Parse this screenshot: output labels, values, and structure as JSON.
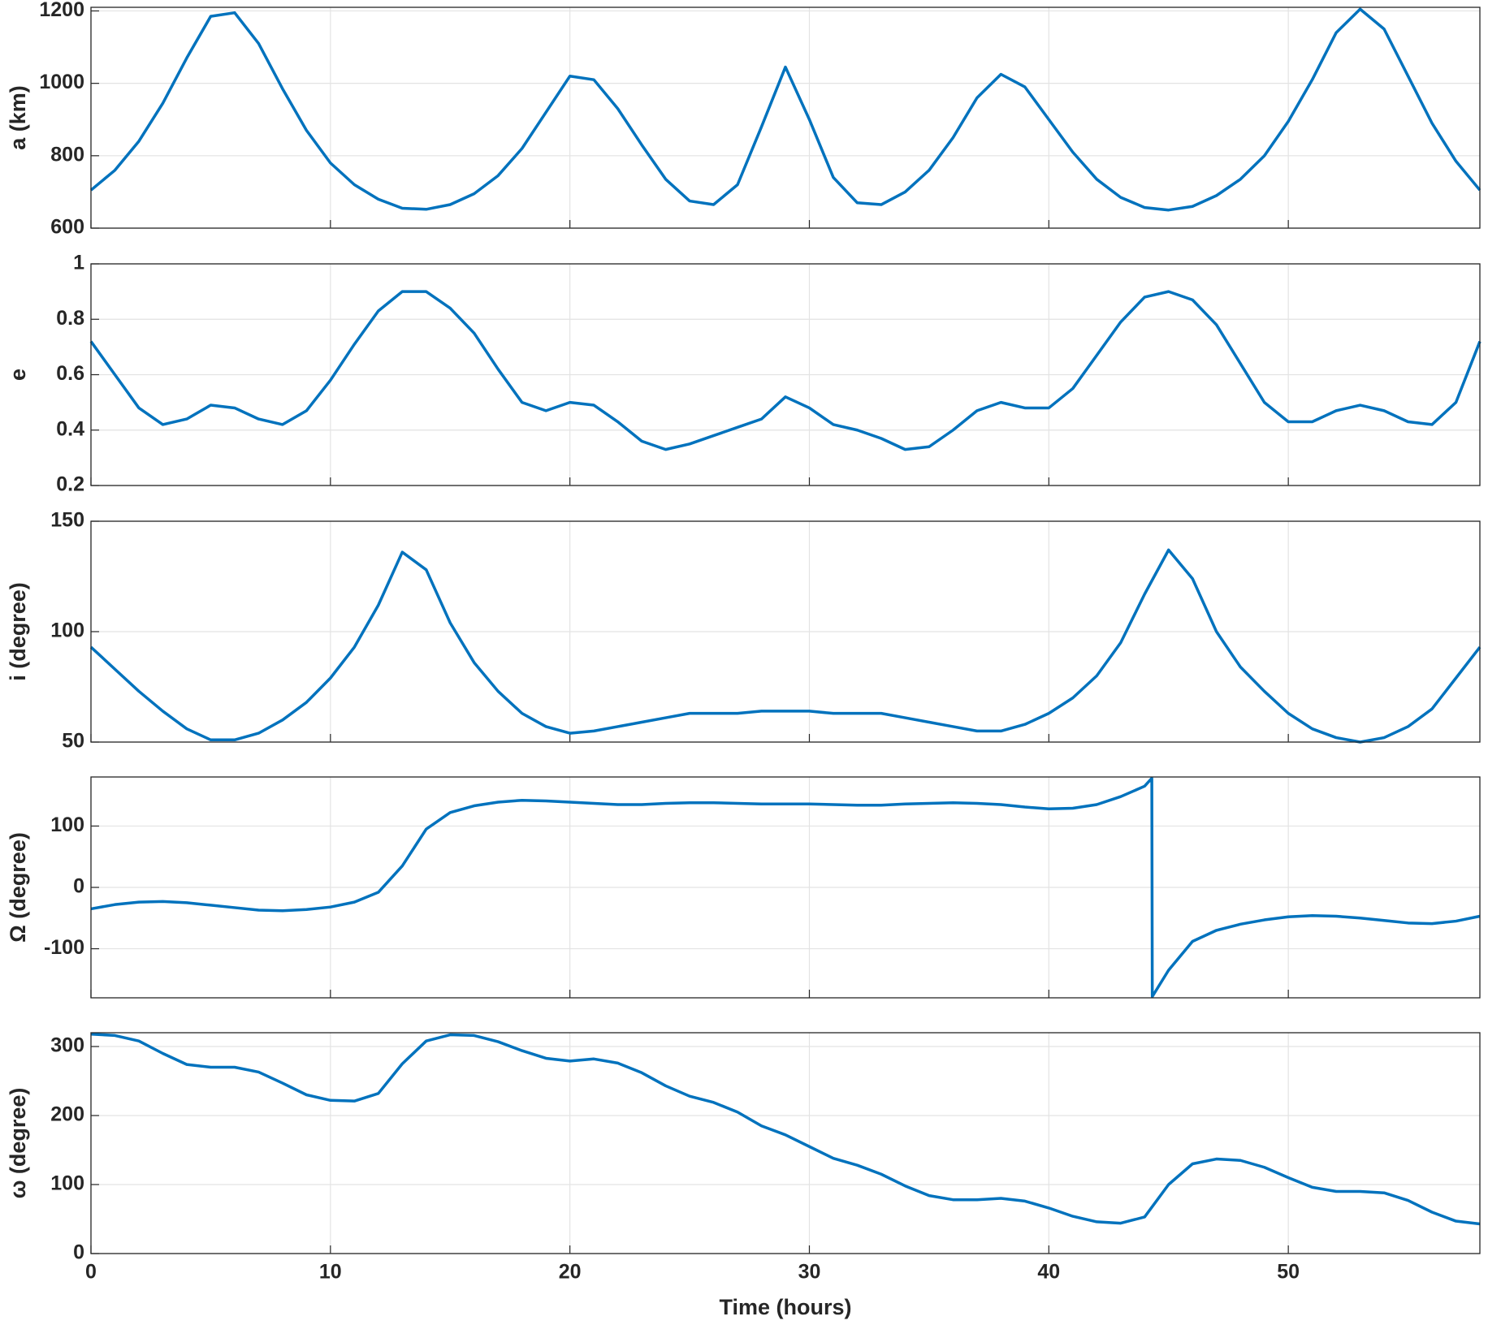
{
  "chart_data": [
    {
      "type": "line",
      "ylabel": "a (km)",
      "grid": true,
      "show_xticklabels": false,
      "x": [
        0,
        1,
        2,
        3,
        4,
        5,
        6,
        7,
        8,
        9,
        10,
        11,
        12,
        13,
        14,
        15,
        16,
        17,
        18,
        19,
        20,
        21,
        22,
        23,
        24,
        25,
        26,
        27,
        28,
        29,
        30,
        31,
        32,
        33,
        34,
        35,
        36,
        37,
        38,
        39,
        40,
        41,
        42,
        43,
        44,
        45,
        46,
        47,
        48,
        49,
        50,
        51,
        52,
        53,
        54,
        55,
        56,
        57,
        58
      ],
      "series": [
        {
          "color": "#0072BD",
          "values": [
            705,
            760,
            840,
            945,
            1070,
            1185,
            1195,
            1110,
            985,
            870,
            780,
            720,
            680,
            655,
            652,
            665,
            695,
            745,
            820,
            920,
            1020,
            1010,
            930,
            830,
            735,
            675,
            665,
            720,
            880,
            1045,
            900,
            740,
            670,
            665,
            700,
            760,
            850,
            960,
            1025,
            990,
            900,
            810,
            735,
            685,
            657,
            650,
            660,
            690,
            735,
            800,
            895,
            1010,
            1140,
            1205,
            1150,
            1020,
            890,
            785,
            705
          ]
        }
      ],
      "xlim": [
        0,
        58
      ],
      "xticks": [
        0,
        10,
        20,
        30,
        40,
        50
      ],
      "ylim": [
        600,
        1210
      ],
      "yticks": [
        600,
        800,
        1000,
        1200
      ]
    },
    {
      "type": "line",
      "ylabel": "e",
      "grid": true,
      "show_xticklabels": false,
      "x": [
        0,
        1,
        2,
        3,
        4,
        5,
        6,
        7,
        8,
        9,
        10,
        11,
        12,
        13,
        14,
        15,
        16,
        17,
        18,
        19,
        20,
        21,
        22,
        23,
        24,
        25,
        26,
        27,
        28,
        29,
        30,
        31,
        32,
        33,
        34,
        35,
        36,
        37,
        38,
        39,
        40,
        41,
        42,
        43,
        44,
        45,
        46,
        47,
        48,
        49,
        50,
        51,
        52,
        53,
        54,
        55,
        56,
        57,
        58
      ],
      "series": [
        {
          "color": "#0072BD",
          "values": [
            0.72,
            0.6,
            0.48,
            0.42,
            0.44,
            0.49,
            0.48,
            0.44,
            0.42,
            0.47,
            0.58,
            0.71,
            0.83,
            0.9,
            0.9,
            0.84,
            0.75,
            0.62,
            0.5,
            0.47,
            0.5,
            0.49,
            0.43,
            0.36,
            0.33,
            0.35,
            0.38,
            0.41,
            0.44,
            0.52,
            0.48,
            0.42,
            0.4,
            0.37,
            0.33,
            0.34,
            0.4,
            0.47,
            0.5,
            0.48,
            0.48,
            0.55,
            0.67,
            0.79,
            0.88,
            0.9,
            0.87,
            0.78,
            0.64,
            0.5,
            0.43,
            0.43,
            0.47,
            0.49,
            0.47,
            0.43,
            0.42,
            0.5,
            0.72
          ]
        }
      ],
      "xlim": [
        0,
        58
      ],
      "xticks": [
        0,
        10,
        20,
        30,
        40,
        50
      ],
      "ylim": [
        0.2,
        1
      ],
      "yticks": [
        0.2,
        0.4,
        0.6,
        0.8,
        1
      ]
    },
    {
      "type": "line",
      "ylabel": "i (degree)",
      "grid": true,
      "show_xticklabels": false,
      "x": [
        0,
        1,
        2,
        3,
        4,
        5,
        6,
        7,
        8,
        9,
        10,
        11,
        12,
        13,
        14,
        15,
        16,
        17,
        18,
        19,
        20,
        21,
        22,
        23,
        24,
        25,
        26,
        27,
        28,
        29,
        30,
        31,
        32,
        33,
        34,
        35,
        36,
        37,
        38,
        39,
        40,
        41,
        42,
        43,
        44,
        45,
        46,
        47,
        48,
        49,
        50,
        51,
        52,
        53,
        54,
        55,
        56,
        57,
        58
      ],
      "series": [
        {
          "color": "#0072BD",
          "values": [
            93,
            83,
            73,
            64,
            56,
            51,
            51,
            54,
            60,
            68,
            79,
            93,
            112,
            136,
            128,
            104,
            86,
            73,
            63,
            57,
            54,
            55,
            57,
            59,
            61,
            63,
            63,
            63,
            64,
            64,
            64,
            63,
            63,
            63,
            61,
            59,
            57,
            55,
            55,
            58,
            63,
            70,
            80,
            95,
            117,
            137,
            124,
            100,
            84,
            73,
            63,
            56,
            52,
            50,
            52,
            57,
            65,
            79,
            93
          ]
        }
      ],
      "xlim": [
        0,
        58
      ],
      "xticks": [
        0,
        10,
        20,
        30,
        40,
        50
      ],
      "ylim": [
        50,
        150
      ],
      "yticks": [
        50,
        100,
        150
      ]
    },
    {
      "type": "line",
      "ylabel": "Ω (degree)",
      "grid": true,
      "show_xticklabels": false,
      "x": [
        0,
        1,
        2,
        3,
        4,
        5,
        6,
        7,
        8,
        9,
        10,
        11,
        12,
        13,
        14,
        15,
        16,
        17,
        18,
        19,
        20,
        21,
        22,
        23,
        24,
        25,
        26,
        27,
        28,
        29,
        30,
        31,
        32,
        33,
        34,
        35,
        36,
        37,
        38,
        39,
        40,
        41,
        42,
        43,
        44,
        44.3,
        44.32,
        45,
        46,
        47,
        48,
        49,
        50,
        51,
        52,
        53,
        54,
        55,
        56,
        57,
        58
      ],
      "series": [
        {
          "color": "#0072BD",
          "values": [
            -35,
            -28,
            -24,
            -23,
            -25,
            -29,
            -33,
            -37,
            -38,
            -36,
            -32,
            -24,
            -8,
            35,
            95,
            122,
            133,
            139,
            142,
            141,
            139,
            137,
            135,
            135,
            137,
            138,
            138,
            137,
            136,
            136,
            136,
            135,
            134,
            134,
            136,
            137,
            138,
            137,
            135,
            131,
            128,
            129,
            135,
            148,
            165,
            178,
            -178,
            -135,
            -88,
            -70,
            -60,
            -53,
            -48,
            -46,
            -47,
            -50,
            -54,
            -58,
            -59,
            -55,
            -47
          ]
        }
      ],
      "xlim": [
        0,
        58
      ],
      "xticks": [
        0,
        10,
        20,
        30,
        40,
        50
      ],
      "ylim": [
        -180,
        180
      ],
      "yticks": [
        -100,
        0,
        100
      ]
    },
    {
      "type": "line",
      "ylabel": "ω (degree)",
      "xlabel": "Time (hours)",
      "grid": true,
      "show_xticklabels": true,
      "x": [
        0,
        1,
        2,
        3,
        4,
        5,
        6,
        7,
        8,
        9,
        10,
        11,
        12,
        13,
        14,
        15,
        16,
        17,
        18,
        19,
        20,
        21,
        22,
        23,
        24,
        25,
        26,
        27,
        28,
        29,
        30,
        31,
        32,
        33,
        34,
        35,
        36,
        37,
        38,
        39,
        40,
        41,
        42,
        43,
        44,
        45,
        46,
        47,
        48,
        49,
        50,
        51,
        52,
        53,
        54,
        55,
        56,
        57,
        58
      ],
      "series": [
        {
          "color": "#0072BD",
          "values": [
            318,
            316,
            308,
            290,
            274,
            270,
            270,
            263,
            247,
            230,
            222,
            221,
            232,
            275,
            308,
            317,
            316,
            307,
            294,
            283,
            279,
            282,
            276,
            262,
            243,
            228,
            219,
            205,
            185,
            172,
            155,
            138,
            128,
            115,
            98,
            84,
            78,
            78,
            80,
            76,
            66,
            54,
            46,
            44,
            53,
            100,
            130,
            137,
            135,
            125,
            110,
            96,
            90,
            90,
            88,
            77,
            60,
            47,
            43
          ]
        }
      ],
      "xlim": [
        0,
        58
      ],
      "xticks": [
        0,
        10,
        20,
        30,
        40,
        50
      ],
      "ylim": [
        0,
        320
      ],
      "yticks": [
        0,
        100,
        200,
        300
      ]
    }
  ]
}
